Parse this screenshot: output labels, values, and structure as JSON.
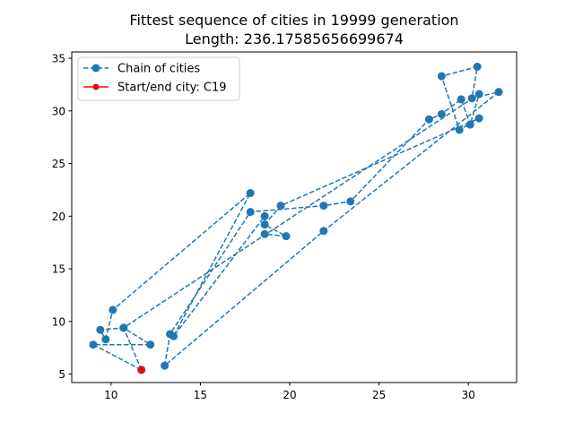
{
  "chart_data": {
    "type": "line",
    "title": "Fittest sequence of cities in 19999 generation",
    "subtitle": "Length: 236.17585656699674",
    "xlabel": "",
    "ylabel": "",
    "xlim": [
      7.8,
      32.7
    ],
    "ylim": [
      4.2,
      35.6
    ],
    "xticks": [
      10,
      15,
      20,
      25,
      30
    ],
    "yticks": [
      5,
      10,
      15,
      20,
      25,
      30,
      35
    ],
    "grid": false,
    "legend_position": "top-left",
    "series": [
      {
        "name": "Chain of cities",
        "color": "#1f77b4",
        "linestyle": "dashed",
        "marker": "circle",
        "points": [
          [
            11.7,
            5.4
          ],
          [
            9.0,
            7.8
          ],
          [
            12.2,
            7.8
          ],
          [
            10.7,
            9.4
          ],
          [
            9.4,
            9.2
          ],
          [
            9.7,
            8.3
          ],
          [
            10.1,
            11.1
          ],
          [
            17.8,
            22.2
          ],
          [
            13.5,
            8.6
          ],
          [
            18.6,
            20.0
          ],
          [
            18.6,
            18.3
          ],
          [
            19.8,
            18.1
          ],
          [
            18.6,
            19.2
          ],
          [
            19.5,
            21.0
          ],
          [
            30.6,
            29.3
          ],
          [
            29.5,
            28.2
          ],
          [
            28.5,
            33.3
          ],
          [
            30.5,
            34.2
          ],
          [
            30.2,
            31.2
          ],
          [
            31.7,
            31.8
          ],
          [
            21.9,
            18.6
          ],
          [
            13.0,
            5.8
          ],
          [
            13.3,
            8.8
          ],
          [
            17.8,
            20.4
          ],
          [
            21.9,
            21.0
          ],
          [
            23.4,
            21.4
          ],
          [
            27.8,
            29.2
          ],
          [
            28.5,
            29.7
          ],
          [
            29.6,
            31.1
          ],
          [
            30.1,
            28.7
          ],
          [
            30.6,
            31.6
          ],
          [
            10.7,
            9.4
          ],
          [
            11.7,
            5.4
          ]
        ]
      },
      {
        "name": "Start/end city: C19",
        "color": "#ff0000",
        "linestyle": "solid",
        "marker": "circle",
        "points": [
          [
            11.7,
            5.4
          ]
        ]
      }
    ]
  }
}
